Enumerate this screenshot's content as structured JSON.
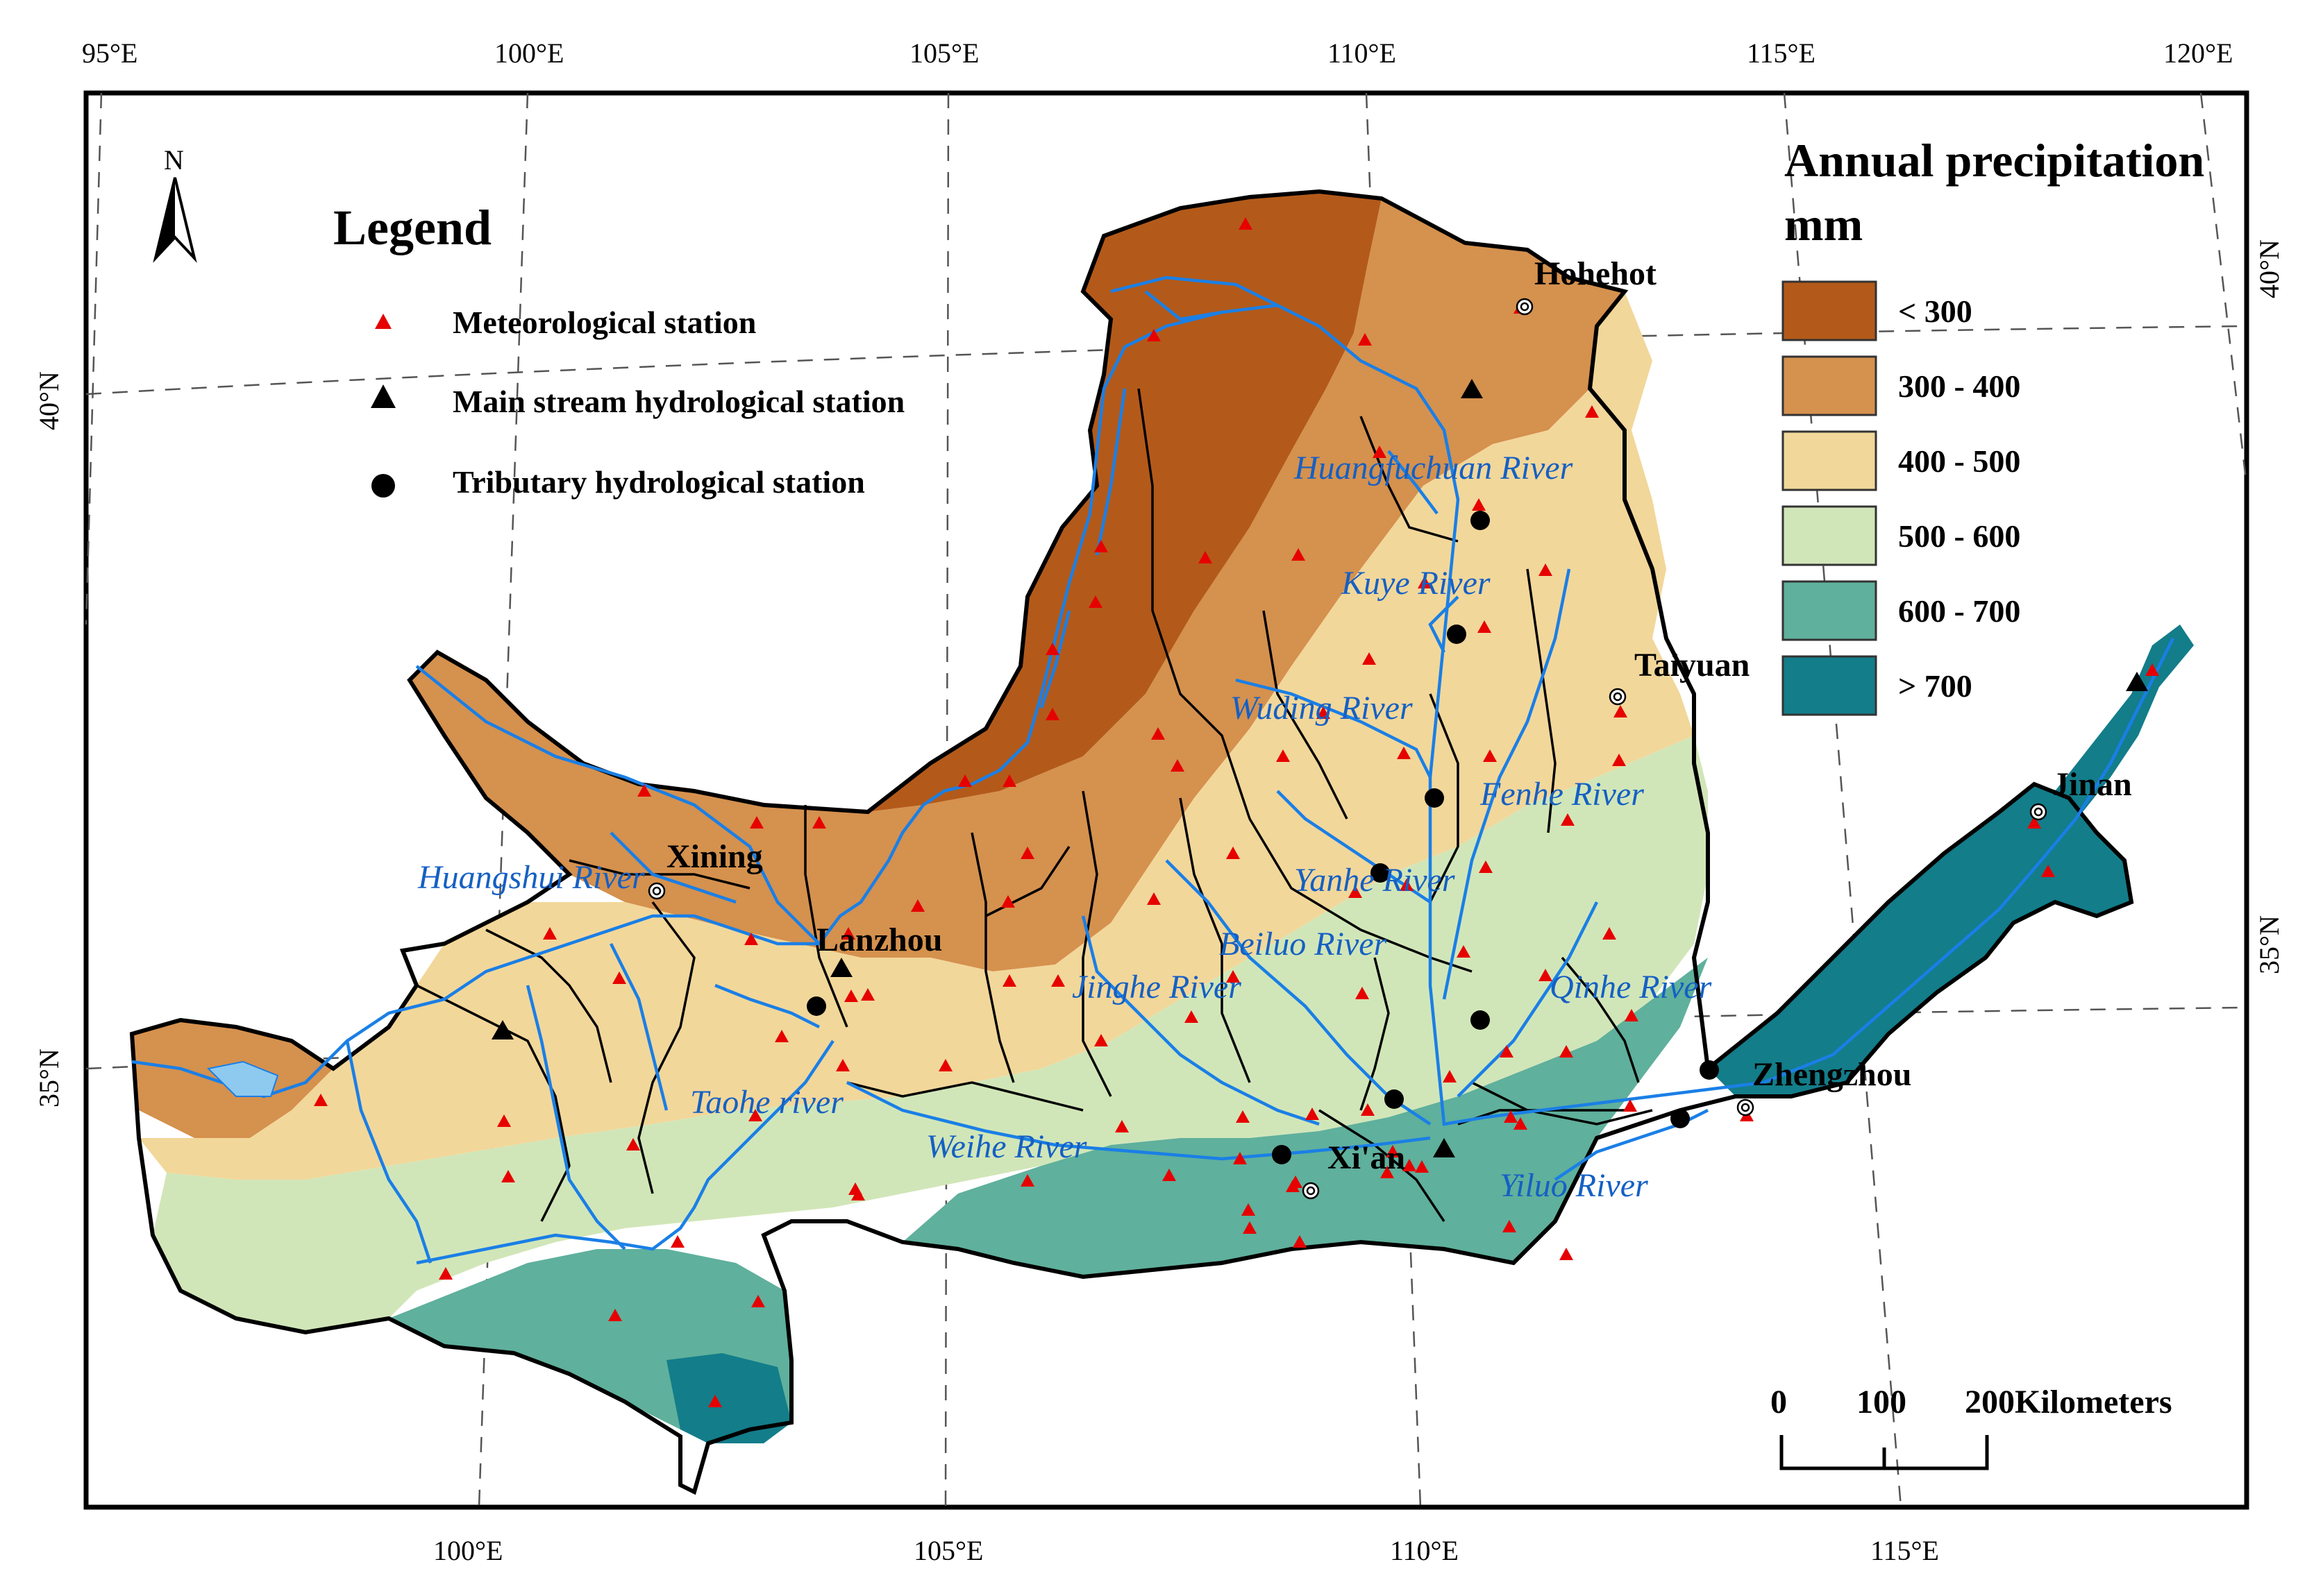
{
  "map": {
    "legend_title": "Legend",
    "north_label": "N",
    "legend_items": [
      {
        "label": "Meteorological station",
        "symbol": "red-triangle"
      },
      {
        "label": "Main stream hydrological station",
        "symbol": "black-triangle"
      },
      {
        "label": "Tributary hydrological station",
        "symbol": "black-circle"
      }
    ],
    "precip_title_line1": "Annual precipitation",
    "precip_title_line2": "mm",
    "precip_classes": [
      {
        "label": "<  300",
        "color": "#b35a1a"
      },
      {
        "label": "300 - 400",
        "color": "#d5914e"
      },
      {
        "label": "400 - 500",
        "color": "#f2d79a"
      },
      {
        "label": "500 - 600",
        "color": "#d1e6b8"
      },
      {
        "label": "600 - 700",
        "color": "#5fb09c"
      },
      {
        "label": "> 700",
        "color": "#137d8a"
      }
    ],
    "top_ticks": [
      "95°E",
      "100°E",
      "105°E",
      "110°E",
      "115°E",
      "120°E"
    ],
    "bottom_ticks": [
      "100°E",
      "105°E",
      "110°E",
      "115°E"
    ],
    "left_ticks": [
      "40°N",
      "35°N"
    ],
    "right_ticks": [
      "40°N",
      "35°N"
    ],
    "scale_labels": [
      "0",
      "100",
      "200Kilometers"
    ],
    "cities": [
      "Hohehot",
      "Taiyuan",
      "Jinan",
      "Xining",
      "Lanzhou",
      "Zhengzhou",
      "Xi'an"
    ],
    "rivers": [
      "Huangfuchuan River",
      "Kuye River",
      "Wuding River",
      "Fenhe River",
      "Huangshui River",
      "Yanhe River",
      "Beiluo River",
      "Jinghe River",
      "Qinhe River",
      "Taohe river",
      "Weihe River",
      "Yiluo River"
    ],
    "river_color": "#1a7fe6",
    "station_color": "#e60000"
  }
}
